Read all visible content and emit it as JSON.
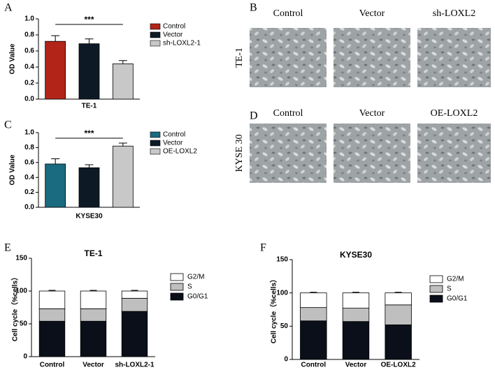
{
  "panel_labels": [
    "A",
    "B",
    "C",
    "D",
    "E",
    "F"
  ],
  "image_panels": [
    {
      "row_label": "TE-1",
      "columns": [
        "Control",
        "Vector",
        "sh-LOXL2"
      ]
    },
    {
      "row_label": "KYSE 30",
      "columns": [
        "Control",
        "Vector",
        "OE-LOXL2"
      ]
    }
  ],
  "chart_data": [
    {
      "type": "bar",
      "x_label": "TE-1",
      "y_label": "OD Value",
      "significance": "***",
      "ylim": [
        0,
        1.0
      ],
      "yticks": [
        {
          "value": 0,
          "label": "0.0"
        },
        0.2,
        0.4,
        0.6,
        0.8,
        {
          "value": 1.0,
          "label": "1.0"
        }
      ],
      "series": [
        {
          "name": "Control",
          "color": "#b22418",
          "values": [
            0.72
          ],
          "errors": [
            0.07
          ]
        },
        {
          "name": "Vector",
          "color": "#0d1a26",
          "values": [
            0.69
          ],
          "errors": [
            0.06
          ]
        },
        {
          "name": "sh-LOXL2-1",
          "color": "#c8c8c8",
          "values": [
            0.44
          ],
          "errors": [
            0.04
          ]
        }
      ]
    },
    {
      "type": "bar",
      "x_label": "KYSE30",
      "y_label": "OD Value",
      "significance": "***",
      "ylim": [
        0,
        1.0
      ],
      "yticks": [
        {
          "value": 0,
          "label": "0.0"
        },
        0.2,
        0.4,
        0.6,
        0.8,
        {
          "value": 1.0,
          "label": "1.0"
        }
      ],
      "series": [
        {
          "name": "Control",
          "color": "#1a6a80",
          "values": [
            0.58
          ],
          "errors": [
            0.07
          ]
        },
        {
          "name": "Vector",
          "color": "#0d1a26",
          "values": [
            0.53
          ],
          "errors": [
            0.04
          ]
        },
        {
          "name": "OE-LOXL2",
          "color": "#c8c8c8",
          "values": [
            0.82
          ],
          "errors": [
            0.04
          ]
        }
      ]
    },
    {
      "type": "stacked_bar",
      "title": "TE-1",
      "y_label": "Cell cycle（%cells）",
      "categories": [
        "Control",
        "Vector",
        "sh-LOXL2-1"
      ],
      "ylim": [
        0,
        150
      ],
      "yticks": [
        0,
        50,
        100,
        150
      ],
      "series": [
        {
          "name": "G0/G1",
          "color": "#0a0f1a",
          "values": [
            54,
            54,
            69
          ],
          "errors": [
            1,
            1,
            1
          ]
        },
        {
          "name": "S",
          "color": "#bfbfbf",
          "values": [
            19,
            19,
            20
          ],
          "errors": [
            1,
            1,
            1
          ]
        },
        {
          "name": "G2/M",
          "color": "#ffffff",
          "values": [
            27,
            27,
            11
          ],
          "errors": [
            1,
            1,
            1
          ]
        }
      ]
    },
    {
      "type": "stacked_bar",
      "title": "KYSE30",
      "y_label": "Cell cycle（%cells）",
      "categories": [
        "Control",
        "Vector",
        "OE-LOXL2"
      ],
      "ylim": [
        0,
        150
      ],
      "yticks": [
        0,
        50,
        100,
        150
      ],
      "series": [
        {
          "name": "G0/G1",
          "color": "#0a0f1a",
          "values": [
            58,
            57,
            52
          ],
          "errors": [
            1,
            1,
            1
          ]
        },
        {
          "name": "S",
          "color": "#bfbfbf",
          "values": [
            20,
            20,
            30
          ],
          "errors": [
            1,
            1,
            1
          ]
        },
        {
          "name": "G2/M",
          "color": "#ffffff",
          "values": [
            22,
            23,
            18
          ],
          "errors": [
            1,
            1,
            1
          ]
        }
      ]
    }
  ]
}
